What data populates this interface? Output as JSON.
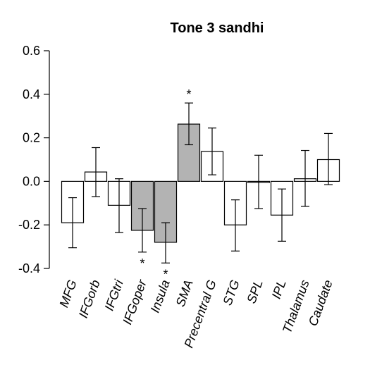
{
  "chart_data": {
    "type": "bar",
    "title": "Tone 3 sandhi",
    "xlabel": "",
    "ylabel": "",
    "ylim": [
      -0.4,
      0.6
    ],
    "yticks": [
      -0.4,
      -0.2,
      0.0,
      0.2,
      0.4,
      0.6
    ],
    "ytick_labels": [
      "-0.4",
      "-0.2",
      "0.0",
      "0.2",
      "0.4",
      "0.6"
    ],
    "grid": false,
    "categories": [
      "MFG",
      "IFGorb",
      "IFGtri",
      "IFGoper",
      "Insula",
      "SMA",
      "Precentral G",
      "STG",
      "SPL",
      "IPL",
      "Thalamus",
      "Caudate"
    ],
    "values": [
      -0.19,
      0.043,
      -0.11,
      -0.225,
      -0.28,
      0.263,
      0.137,
      -0.2,
      -0.005,
      -0.155,
      0.012,
      0.1
    ],
    "error_low": [
      -0.305,
      -0.07,
      -0.235,
      -0.325,
      -0.375,
      0.168,
      0.03,
      -0.32,
      -0.125,
      -0.275,
      -0.115,
      -0.015
    ],
    "error_high": [
      -0.075,
      0.155,
      0.012,
      -0.125,
      -0.19,
      0.36,
      0.245,
      -0.085,
      0.12,
      -0.035,
      0.142,
      0.22
    ],
    "significant": [
      false,
      false,
      false,
      true,
      true,
      true,
      false,
      false,
      false,
      false,
      false,
      false
    ],
    "significance_marker": "*",
    "colors": {
      "significant": "#b3b3b3",
      "default": "#ffffff",
      "stroke": "#000000"
    }
  }
}
